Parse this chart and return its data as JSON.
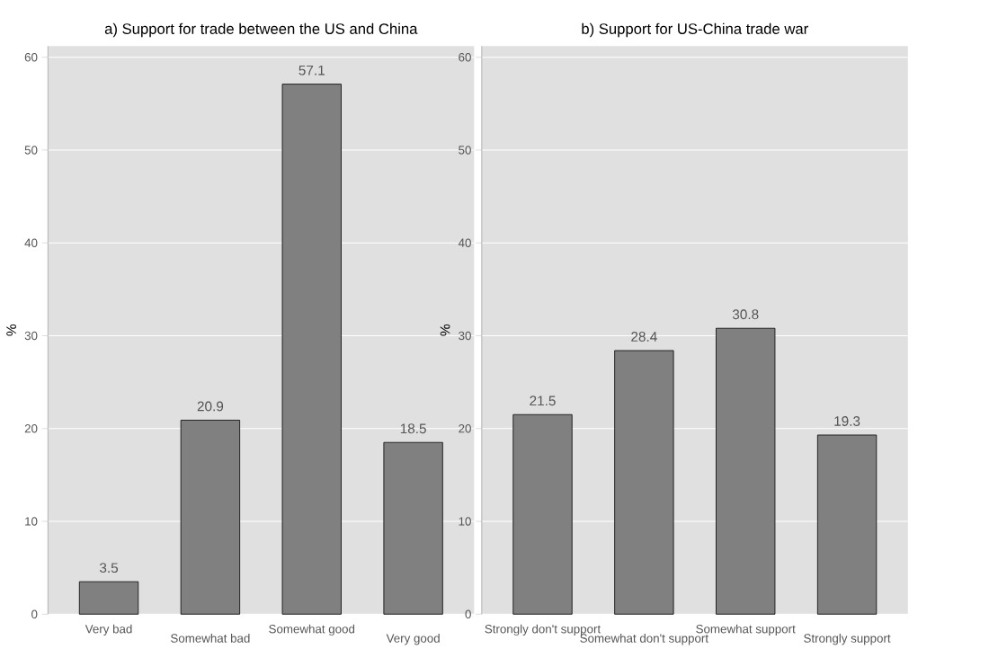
{
  "chart_data": [
    {
      "type": "bar",
      "title": "a) Support for trade between the US and China",
      "ylabel": "%",
      "categories": [
        "Very bad",
        "Somewhat bad",
        "Somewhat good",
        "Very good"
      ],
      "values": [
        3.5,
        20.9,
        57.1,
        18.5
      ],
      "color": "#808080",
      "ylim": [
        0,
        61.2
      ],
      "yticks": [
        0,
        10,
        20,
        30,
        40,
        50,
        60
      ],
      "grid": "y",
      "data_labels": true
    },
    {
      "type": "bar",
      "title": "b) Support for US-China trade war",
      "ylabel": "%",
      "categories": [
        "Strongly don't support",
        "Somewhat don't support",
        "Somewhat support",
        "Strongly support"
      ],
      "values": [
        21.5,
        28.4,
        30.8,
        19.3
      ],
      "color": "#808080",
      "ylim": [
        0,
        61.2
      ],
      "yticks": [
        0,
        10,
        20,
        30,
        40,
        50,
        60
      ],
      "grid": "y",
      "data_labels": true
    }
  ]
}
